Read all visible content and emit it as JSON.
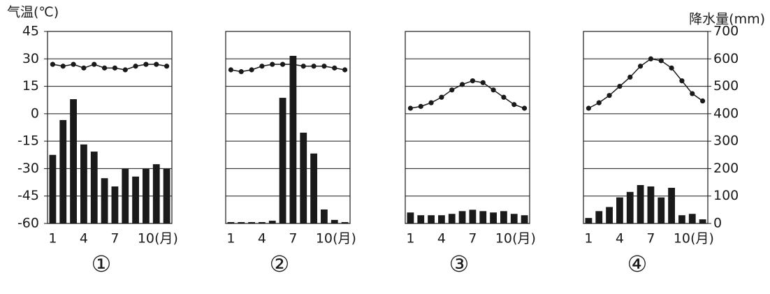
{
  "chart_data": [
    {
      "type": "combo",
      "panel_label": "①",
      "ylabel": "气温(℃)",
      "ytick_labels": true,
      "y2tick_labels": false,
      "categories": [
        "1",
        null,
        null,
        "4",
        null,
        null,
        "7",
        null,
        null,
        "10",
        null,
        null
      ],
      "xlabel": "(月)",
      "ylim": [
        -60,
        45
      ],
      "yticks": [
        -60,
        -45,
        -30,
        -15,
        0,
        15,
        30,
        45
      ],
      "y2lim": [
        0,
        700
      ],
      "y2ticks": [
        0,
        100,
        200,
        300,
        400,
        500,
        600,
        700
      ],
      "series": [
        {
          "kind": "bar",
          "axis": "y2",
          "color": "#1a1a1a",
          "values": [
            250,
            377,
            453,
            288,
            262,
            165,
            135,
            199,
            171,
            199,
            216,
            199
          ]
        },
        {
          "kind": "line",
          "color": "#1a1a1a",
          "values": [
            27,
            26,
            27,
            25,
            27,
            25,
            25,
            24,
            26,
            27,
            27,
            26
          ]
        }
      ]
    },
    {
      "type": "combo",
      "panel_label": "②",
      "ytick_labels": false,
      "y2tick_labels": false,
      "categories": [
        "1",
        null,
        null,
        "4",
        null,
        null,
        "7",
        null,
        null,
        "10",
        null,
        null
      ],
      "xlabel": "(月)",
      "ylim": [
        -60,
        45
      ],
      "yticks": [
        -60,
        -45,
        -30,
        -15,
        0,
        15,
        30,
        45
      ],
      "y2lim": [
        0,
        700
      ],
      "y2ticks": [
        0,
        100,
        200,
        300,
        400,
        500,
        600,
        700
      ],
      "series": [
        {
          "kind": "bar",
          "axis": "y2",
          "color": "#1a1a1a",
          "values": [
            5,
            5,
            5,
            5,
            10,
            458,
            611,
            331,
            255,
            51,
            13,
            5
          ]
        },
        {
          "kind": "line",
          "color": "#1a1a1a",
          "values": [
            24,
            23,
            24,
            26,
            27,
            27,
            27,
            26,
            26,
            26,
            25,
            24
          ]
        }
      ]
    },
    {
      "type": "combo",
      "panel_label": "③",
      "ytick_labels": false,
      "y2tick_labels": false,
      "categories": [
        "1",
        null,
        null,
        "4",
        null,
        null,
        "7",
        null,
        null,
        "10",
        null,
        null
      ],
      "xlabel": "(月)",
      "ylim": [
        -60,
        45
      ],
      "yticks": [
        -60,
        -45,
        -30,
        -15,
        0,
        15,
        30,
        45
      ],
      "y2lim": [
        0,
        700
      ],
      "y2ticks": [
        0,
        100,
        200,
        300,
        400,
        500,
        600,
        700
      ],
      "series": [
        {
          "kind": "bar",
          "axis": "y2",
          "color": "#1a1a1a",
          "values": [
            40,
            30,
            30,
            30,
            35,
            45,
            50,
            45,
            40,
            45,
            35,
            30
          ]
        },
        {
          "kind": "line",
          "color": "#1a1a1a",
          "values": [
            3,
            4,
            6,
            9,
            13,
            16,
            18,
            17,
            13,
            9,
            5,
            3
          ]
        }
      ]
    },
    {
      "type": "combo",
      "panel_label": "④",
      "y2label": "降水量(mm)",
      "ytick_labels": false,
      "y2tick_labels": true,
      "categories": [
        "1",
        null,
        null,
        "4",
        null,
        null,
        "7",
        null,
        null,
        "10",
        null,
        null
      ],
      "xlabel": "(月)",
      "ylim": [
        -60,
        45
      ],
      "yticks": [
        -60,
        -45,
        -30,
        -15,
        0,
        15,
        30,
        45
      ],
      "y2lim": [
        0,
        700
      ],
      "y2ticks": [
        0,
        100,
        200,
        300,
        400,
        500,
        600,
        700
      ],
      "series": [
        {
          "kind": "bar",
          "axis": "y2",
          "color": "#1a1a1a",
          "values": [
            20,
            45,
            60,
            95,
            115,
            140,
            135,
            95,
            130,
            30,
            35,
            15
          ]
        },
        {
          "kind": "line",
          "color": "#1a1a1a",
          "values": [
            3,
            6,
            10,
            15,
            20,
            26,
            30,
            29,
            25,
            18,
            11,
            7
          ]
        }
      ]
    }
  ]
}
